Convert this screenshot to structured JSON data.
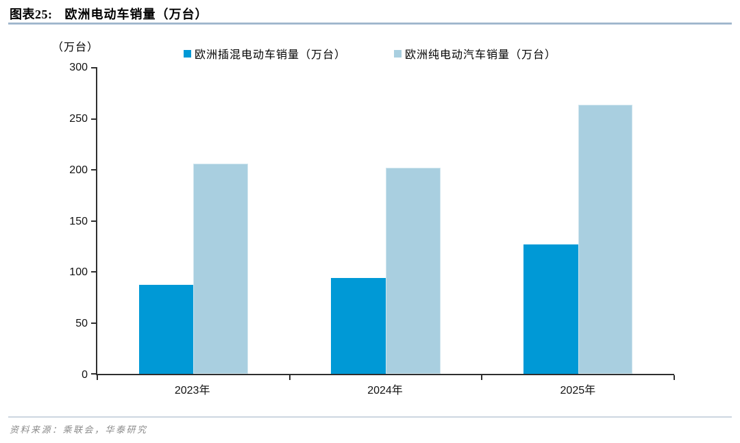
{
  "header": {
    "figure_label": "图表25:",
    "title": "欧洲电动车销量（万台）"
  },
  "chart_data": {
    "type": "bar",
    "categories": [
      "2023年",
      "2024年",
      "2025年"
    ],
    "series": [
      {
        "name": "欧洲插混电动车销量（万台）",
        "color": "#0099D6",
        "values": [
          87,
          94,
          127
        ]
      },
      {
        "name": "欧洲纯电动汽车销量（万台）",
        "color": "#A9CFE0",
        "values": [
          206,
          202,
          264
        ]
      }
    ],
    "title": "欧洲电动车销量（万台）",
    "xlabel": "",
    "ylabel": "（万台）",
    "ylim": [
      0,
      300
    ],
    "yticks": [
      0,
      50,
      100,
      150,
      200,
      250,
      300
    ],
    "grid": false,
    "legend_position": "top"
  },
  "footer": {
    "source": "资料来源：乘联会，华泰研究"
  }
}
